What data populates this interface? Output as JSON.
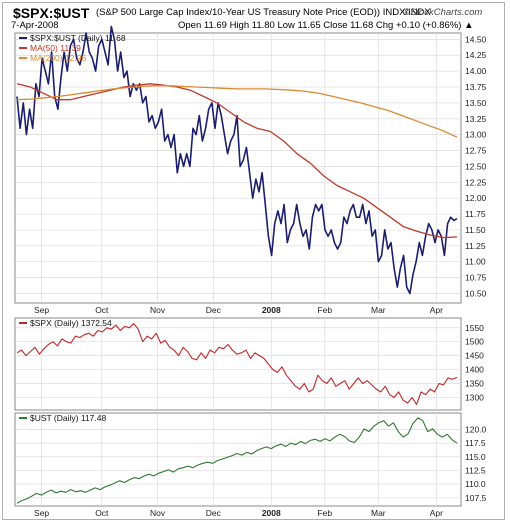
{
  "header": {
    "symbol": "$SPX:$UST",
    "description": "(S&P 500 Large Cap Index/10-Year US Treasury Note Price (EOD)) INDX/INDX",
    "date": "7-Apr-2008",
    "ohlc": "Open 11.69  High 11.80  Low 11.65  Close 11.68  Chg +0.10 (+0.86%) ▲",
    "brand": "©StockCharts.com"
  },
  "colors": {
    "series_main": "#1b1f6b",
    "ma50": "#c0392b",
    "ma200": "#d98a30",
    "spx": "#c0282a",
    "ust": "#2e7a2e",
    "grid": "#dcdcdc"
  },
  "chart_data": [
    {
      "type": "line",
      "x_labels": [
        "Sep",
        "Oct",
        "Nov",
        "Dec",
        "2008",
        "Feb",
        "Mar",
        "Apr"
      ],
      "ylim": [
        10.35,
        14.6
      ],
      "y_ticks": [
        "10.50",
        "10.75",
        "11.00",
        "11.25",
        "11.50",
        "11.75",
        "12.00",
        "12.25",
        "12.50",
        "12.75",
        "13.00",
        "13.25",
        "13.50",
        "13.75",
        "14.00",
        "14.25",
        "14.50"
      ],
      "legend": [
        {
          "text": "$SPX:$UST (Daily) 11.68",
          "color": "#1b1f6b"
        },
        {
          "text": "MA(50) 11.39",
          "color": "#c0392b"
        },
        {
          "text": "MA(200) 12.96",
          "color": "#d98a30"
        }
      ],
      "series": [
        {
          "key": "price",
          "color": "#1b1f6b",
          "width": 1.6,
          "values": [
            13.6,
            13.1,
            13.5,
            13.0,
            13.4,
            13.1,
            13.8,
            13.6,
            14.2,
            14.0,
            13.8,
            14.3,
            13.6,
            13.4,
            13.9,
            14.3,
            14.0,
            14.4,
            14.5,
            14.2,
            14.1,
            14.3,
            14.6,
            14.3,
            14.2,
            14.0,
            14.4,
            14.5,
            14.3,
            14.1,
            14.7,
            14.5,
            14.0,
            14.3,
            13.9,
            14.0,
            13.6,
            13.8,
            13.7,
            13.8,
            13.5,
            13.6,
            13.2,
            13.3,
            13.1,
            13.2,
            13.4,
            12.9,
            13.0,
            12.8,
            13.0,
            12.4,
            12.7,
            12.5,
            12.7,
            12.5,
            13.1,
            13.0,
            13.3,
            12.9,
            13.1,
            13.4,
            13.5,
            13.1,
            13.5,
            13.3,
            13.0,
            12.7,
            12.9,
            13.0,
            13.3,
            12.5,
            12.6,
            12.8,
            12.4,
            12.0,
            12.3,
            12.1,
            12.4,
            11.9,
            11.4,
            11.1,
            11.6,
            11.8,
            11.6,
            11.9,
            11.3,
            11.5,
            11.6,
            11.9,
            11.6,
            11.4,
            11.5,
            11.2,
            11.7,
            11.9,
            11.8,
            11.9,
            11.5,
            11.4,
            11.5,
            11.3,
            11.2,
            11.3,
            11.7,
            11.6,
            11.8,
            11.9,
            11.7,
            11.7,
            11.9,
            11.6,
            11.8,
            11.4,
            11.5,
            11.0,
            11.1,
            11.5,
            11.2,
            11.3,
            10.9,
            10.6,
            10.9,
            11.1,
            10.6,
            10.5,
            10.8,
            11.0,
            11.3,
            11.1,
            11.4,
            11.6,
            11.5,
            11.3,
            11.5,
            11.4,
            11.1,
            11.6,
            11.7,
            11.65,
            11.68
          ]
        },
        {
          "key": "ma50",
          "color": "#c0392b",
          "width": 1.3,
          "values": [
            13.8,
            13.75,
            13.65,
            13.55,
            13.55,
            13.6,
            13.65,
            13.7,
            13.75,
            13.78,
            13.8,
            13.78,
            13.75,
            13.7,
            13.6,
            13.5,
            13.35,
            13.2,
            13.1,
            13.05,
            12.9,
            12.7,
            12.55,
            12.35,
            12.2,
            12.1,
            12.0,
            11.85,
            11.7,
            11.55,
            11.48,
            11.42,
            11.38,
            11.39
          ]
        },
        {
          "key": "ma200",
          "color": "#d98a30",
          "width": 1.3,
          "values": [
            13.55,
            13.56,
            13.58,
            13.6,
            13.63,
            13.66,
            13.69,
            13.72,
            13.74,
            13.76,
            13.77,
            13.77,
            13.76,
            13.75,
            13.74,
            13.73,
            13.72,
            13.72,
            13.72,
            13.71,
            13.7,
            13.68,
            13.65,
            13.6,
            13.55,
            13.5,
            13.44,
            13.38,
            13.3,
            13.22,
            13.14,
            13.06,
            12.96
          ]
        }
      ]
    },
    {
      "type": "line",
      "x_labels": [
        "Sep",
        "Oct",
        "Nov",
        "Dec",
        "2008",
        "Feb",
        "Mar",
        "Apr"
      ],
      "ylim": [
        1255,
        1585
      ],
      "y_ticks": [
        "1300",
        "1350",
        "1400",
        "1450",
        "1500",
        "1550"
      ],
      "legend": [
        {
          "text": "$SPX (Daily) 1372.54",
          "color": "#c0282a"
        }
      ],
      "series": [
        {
          "key": "spx",
          "color": "#c0282a",
          "width": 1.1,
          "values": [
            1460,
            1470,
            1450,
            1465,
            1480,
            1455,
            1475,
            1490,
            1500,
            1485,
            1510,
            1500,
            1495,
            1520,
            1515,
            1525,
            1530,
            1520,
            1540,
            1535,
            1550,
            1545,
            1560,
            1540,
            1555,
            1550,
            1565,
            1545,
            1500,
            1520,
            1510,
            1530,
            1495,
            1505,
            1480,
            1470,
            1450,
            1480,
            1465,
            1440,
            1435,
            1460,
            1440,
            1470,
            1460,
            1480,
            1475,
            1490,
            1470,
            1455,
            1460,
            1470,
            1440,
            1460,
            1450,
            1440,
            1420,
            1400,
            1390,
            1410,
            1380,
            1360,
            1340,
            1330,
            1350,
            1320,
            1330,
            1380,
            1360,
            1350,
            1370,
            1340,
            1350,
            1360,
            1330,
            1350,
            1370,
            1350,
            1360,
            1345,
            1330,
            1320,
            1340,
            1310,
            1300,
            1320,
            1290,
            1280,
            1300,
            1275,
            1320,
            1310,
            1330,
            1320,
            1350,
            1345,
            1370,
            1365,
            1372
          ]
        }
      ]
    },
    {
      "type": "line",
      "x_labels": [
        "Sep",
        "Oct",
        "Nov",
        "Dec",
        "2008",
        "Feb",
        "Mar",
        "Apr"
      ],
      "ylim": [
        106.0,
        123.0
      ],
      "y_ticks": [
        "107.5",
        "110.0",
        "112.5",
        "115.0",
        "117.5",
        "120.0"
      ],
      "legend": [
        {
          "text": "$UST (Daily) 117.48",
          "color": "#2e7a2e"
        }
      ],
      "series": [
        {
          "key": "ust",
          "color": "#2e7a2e",
          "width": 1.1,
          "values": [
            106.5,
            107.0,
            107.3,
            107.8,
            108.3,
            108.0,
            108.5,
            108.9,
            108.4,
            108.7,
            108.5,
            109.0,
            108.6,
            108.8,
            108.5,
            108.9,
            109.3,
            109.0,
            109.5,
            109.8,
            110.2,
            110.6,
            110.3,
            110.8,
            111.2,
            111.0,
            111.5,
            111.8,
            111.5,
            112.0,
            112.3,
            112.6,
            112.2,
            112.8,
            113.0,
            113.3,
            113.0,
            113.5,
            113.8,
            114.0,
            113.8,
            114.3,
            114.6,
            114.9,
            115.2,
            115.6,
            115.3,
            115.8,
            115.5,
            116.1,
            116.5,
            116.8,
            116.5,
            117.0,
            117.3,
            116.9,
            117.5,
            117.2,
            117.8,
            117.4,
            118.0,
            118.2,
            117.8,
            118.3,
            117.9,
            118.6,
            119.1,
            118.7,
            117.9,
            117.6,
            118.6,
            120.1,
            119.6,
            120.6,
            121.2,
            121.6,
            120.6,
            121.2,
            119.6,
            118.6,
            119.2,
            121.1,
            122.1,
            121.6,
            119.6,
            120.1,
            119.1,
            118.6,
            119.1,
            118.1,
            117.5
          ]
        }
      ]
    }
  ]
}
